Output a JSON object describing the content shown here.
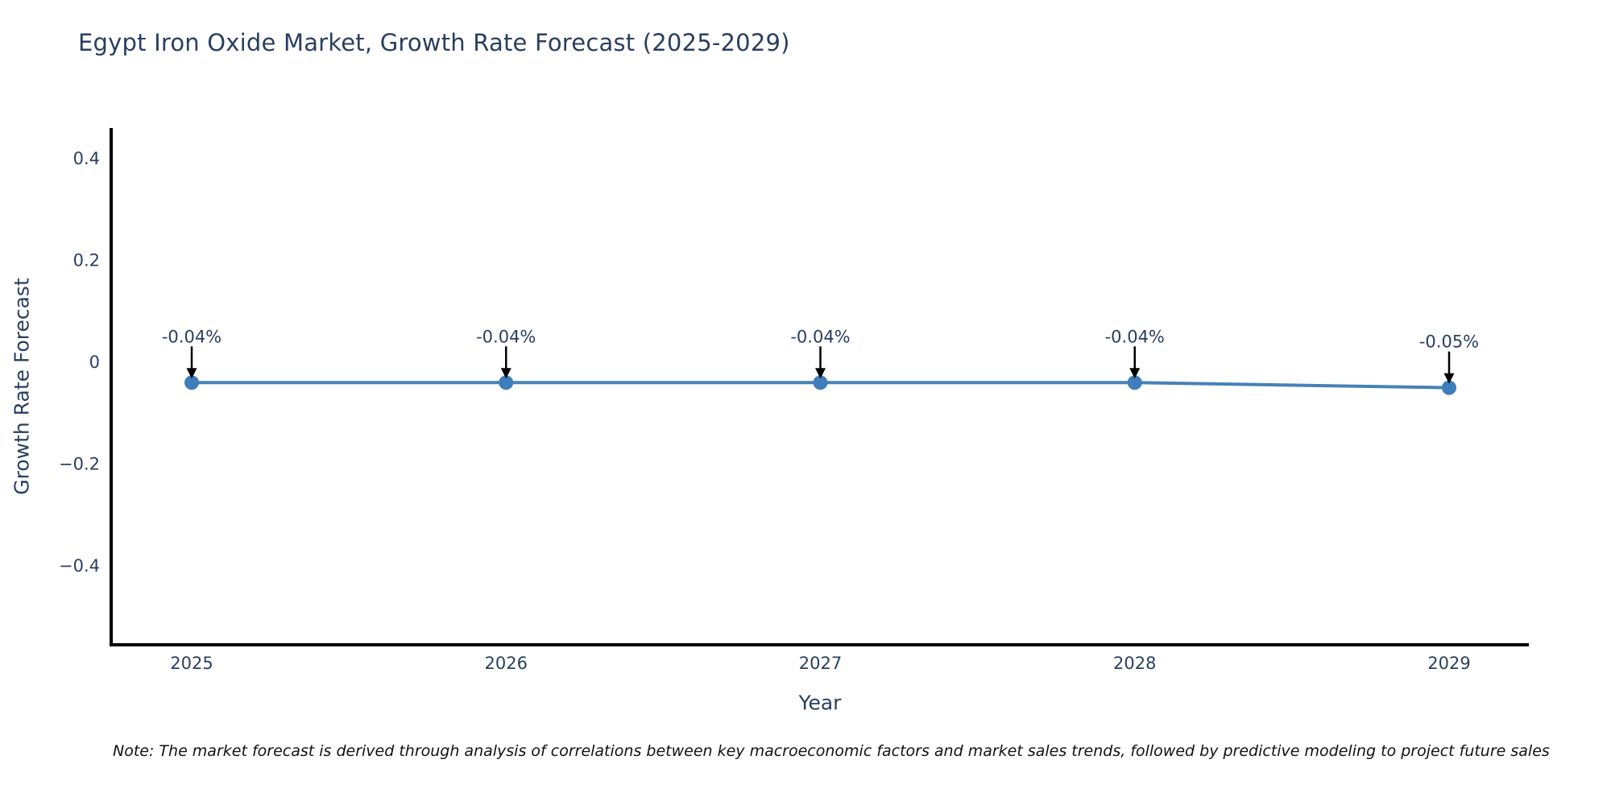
{
  "page": {
    "background": "#ffffff"
  },
  "chart_data": {
    "type": "line",
    "title": "Egypt Iron Oxide Market, Growth Rate Forecast (2025-2029)",
    "xlabel": "Year",
    "ylabel": "Growth Rate Forecast",
    "categories": [
      "2025",
      "2026",
      "2027",
      "2028",
      "2029"
    ],
    "series": [
      {
        "name": "Growth Rate Forecast",
        "values": [
          -0.04,
          -0.04,
          -0.04,
          -0.04,
          -0.05
        ]
      }
    ],
    "point_labels": [
      "-0.04%",
      "-0.04%",
      "-0.04%",
      "-0.04%",
      "-0.05%"
    ],
    "ytick_labels": [
      "0.4",
      "0.2",
      "0",
      "−0.2",
      "−0.4"
    ],
    "ytick_values": [
      0.4,
      0.2,
      0,
      -0.2,
      -0.4
    ],
    "ylim": [
      -0.56,
      0.46
    ],
    "grid": false,
    "legend": false,
    "marker_style": "circle",
    "annotation_style": "black downward arrow from each value label to its data point"
  },
  "note": {
    "text": "Note: The market forecast is derived through analysis of correlations between key macroeconomic factors and market sales trends, followed by predictive modeling to project future sales"
  },
  "colors": {
    "title_text": "#2a3f5f",
    "tick_text": "#2a3f5f",
    "axis_line": "#000000",
    "trend_line": "#4682b4",
    "marker_fill": "#3d7ebb",
    "annotation_text": "#2a3f5f",
    "arrow": "#000000",
    "note_text": "#111111",
    "background": "#ffffff"
  }
}
